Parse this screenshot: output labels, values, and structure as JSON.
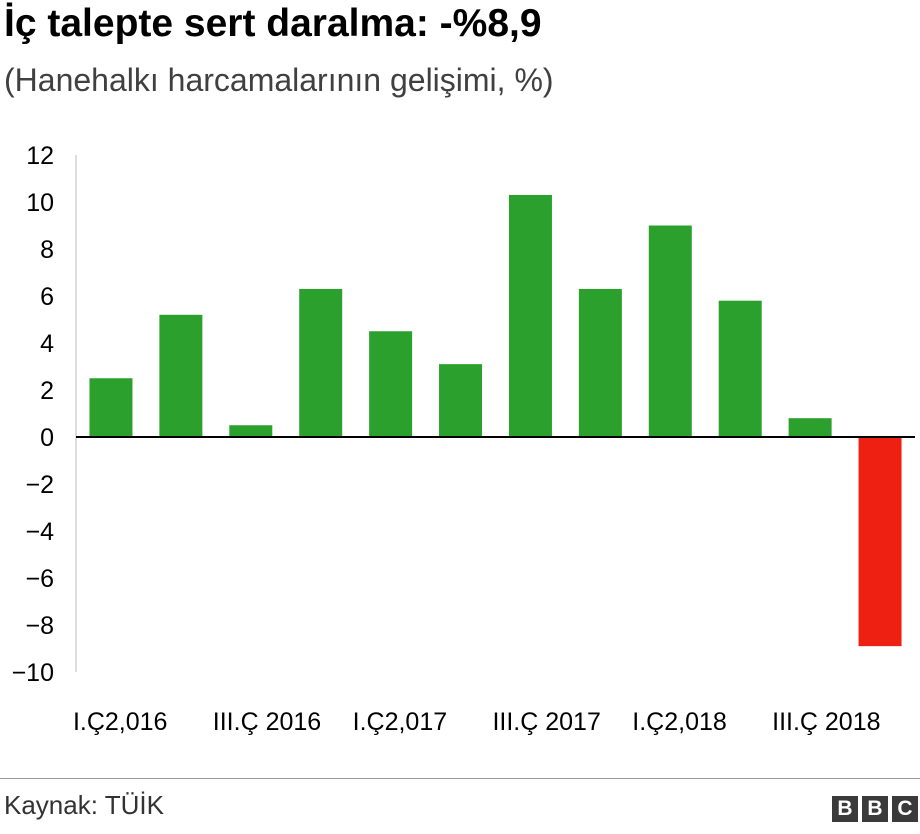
{
  "header": {
    "title": "İç talepte sert daralma: -%8,9",
    "subtitle": "(Hanehalkı harcamalarının gelişimi, %)"
  },
  "footer": {
    "source": "Kaynak: TÜİK",
    "logo": [
      "B",
      "B",
      "C"
    ]
  },
  "colors": {
    "positive": "#2ca02c",
    "negative": "#ee2011",
    "axis": "#000000",
    "gridline": "#c8c8c8"
  },
  "chart_data": {
    "type": "bar",
    "categories": [
      "I.Ç2,016",
      "",
      "III.Ç 2016",
      "",
      "I.Ç2,017",
      "",
      "III.Ç 2017",
      "",
      "I.Ç2,018",
      "",
      "III.Ç 2018",
      ""
    ],
    "values": [
      2.5,
      5.2,
      0.5,
      6.3,
      4.5,
      3.1,
      10.3,
      6.3,
      9.0,
      5.8,
      0.8,
      -8.9
    ],
    "ylim": [
      -10,
      12
    ],
    "yticks": [
      "12",
      "10",
      "8",
      "6",
      "4",
      "2",
      "0",
      "−2",
      "−4",
      "−6",
      "−8",
      "−10"
    ],
    "ytick_values": [
      12,
      10,
      8,
      6,
      4,
      2,
      0,
      -2,
      -4,
      -6,
      -8,
      -10
    ],
    "xtick_labels": [
      "I.Ç2,016",
      "III.Ç 2016",
      "I.Ç2,017",
      "III.Ç 2017",
      "I.Ç2,018",
      "III.Ç 2018"
    ],
    "xtick_indices": [
      0,
      2,
      4,
      6,
      8,
      10
    ],
    "grid": false,
    "legend": "none"
  }
}
